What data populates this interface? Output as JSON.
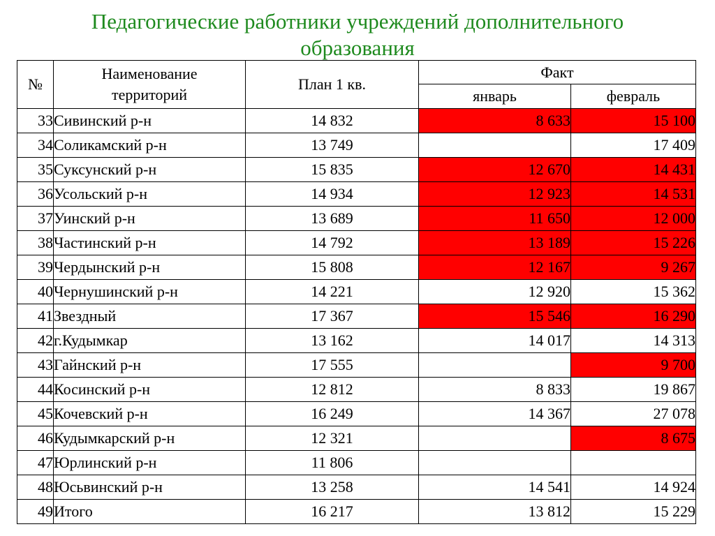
{
  "title": {
    "line1": "Педагогические работники  учреждений дополнительного",
    "line2": "образования"
  },
  "colors": {
    "title": "#1e8a1e",
    "highlight": "#ff0000"
  },
  "table": {
    "headers": {
      "num": "№",
      "name_line1": "Наименование",
      "name_line2": "территорий",
      "plan": "План 1 кв.",
      "fact": "Факт",
      "jan": "январь",
      "feb": "февраль"
    },
    "rows": [
      {
        "num": "33",
        "name": "Сивинский р-н",
        "plan": "14 832",
        "jan": "8 633",
        "feb": "15 100",
        "jan_red": true,
        "feb_red": true
      },
      {
        "num": "34",
        "name": "Соликамский р-н",
        "plan": "13 749",
        "jan": "",
        "feb": "17 409",
        "jan_red": false,
        "feb_red": false
      },
      {
        "num": "35",
        "name": "Суксунский р-н",
        "plan": "15 835",
        "jan": "12 670",
        "feb": "14 431",
        "jan_red": true,
        "feb_red": true
      },
      {
        "num": "36",
        "name": "Усольский р-н",
        "plan": "14 934",
        "jan": "12 923",
        "feb": "14 531",
        "jan_red": true,
        "feb_red": true
      },
      {
        "num": "37",
        "name": "Уинский р-н",
        "plan": "13 689",
        "jan": "11 650",
        "feb": "12 000",
        "jan_red": true,
        "feb_red": true
      },
      {
        "num": "38",
        "name": "Частинский р-н",
        "plan": "14 792",
        "jan": "13 189",
        "feb": "15 226",
        "jan_red": true,
        "feb_red": true
      },
      {
        "num": "39",
        "name": "Чердынский р-н",
        "plan": "15 808",
        "jan": "12 167",
        "feb": "9 267",
        "jan_red": true,
        "feb_red": true
      },
      {
        "num": "40",
        "name": "Чернушинский р-н",
        "plan": "14 221",
        "jan": "12 920",
        "feb": "15 362",
        "jan_red": false,
        "feb_red": false
      },
      {
        "num": "41",
        "name": "Звездный",
        "plan": "17 367",
        "jan": "15 546",
        "feb": "16 290",
        "jan_red": true,
        "feb_red": true
      },
      {
        "num": "42",
        "name": "г.Кудымкар",
        "plan": "13 162",
        "jan": "14 017",
        "feb": "14 313",
        "jan_red": false,
        "feb_red": false
      },
      {
        "num": "43",
        "name": "Гайнский р-н",
        "plan": "17 555",
        "jan": "",
        "feb": "9 700",
        "jan_red": false,
        "feb_red": true
      },
      {
        "num": "44",
        "name": "Косинский р-н",
        "plan": "12 812",
        "jan": "8 833",
        "feb": "19 867",
        "jan_red": false,
        "feb_red": false
      },
      {
        "num": "45",
        "name": "Кочевский р-н",
        "plan": "16 249",
        "jan": "14 367",
        "feb": "27 078",
        "jan_red": false,
        "feb_red": false
      },
      {
        "num": "46",
        "name": "Кудымкарский р-н",
        "plan": "12 321",
        "jan": "",
        "feb": "8 675",
        "jan_red": false,
        "feb_red": true
      },
      {
        "num": "47",
        "name": "Юрлинский р-н",
        "plan": "11 806",
        "jan": "",
        "feb": "",
        "jan_red": false,
        "feb_red": false
      },
      {
        "num": "48",
        "name": "Юсьвинский р-н",
        "plan": "13 258",
        "jan": "14 541",
        "feb": "14 924",
        "jan_red": false,
        "feb_red": false
      },
      {
        "num": "49",
        "name": "Итого",
        "plan": "16 217",
        "jan": "13 812",
        "feb": "15 229",
        "jan_red": false,
        "feb_red": false,
        "bold": true
      }
    ]
  }
}
